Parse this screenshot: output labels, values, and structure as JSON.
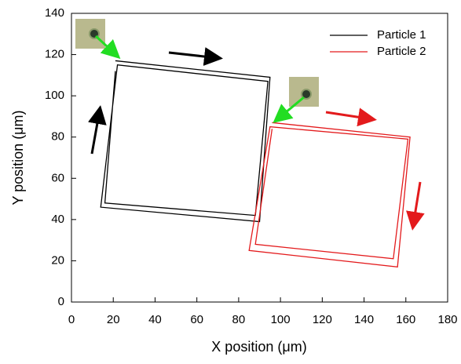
{
  "chart_data": {
    "type": "line",
    "xlabel": "X position (μm)",
    "ylabel": "Y position (μm)",
    "xlim": [
      0,
      180
    ],
    "xticks": [
      0,
      20,
      40,
      60,
      80,
      100,
      120,
      140,
      160,
      180
    ],
    "ylim": [
      0,
      140
    ],
    "yticks": [
      0,
      20,
      40,
      60,
      80,
      100,
      120,
      140
    ],
    "legend": "upper right",
    "series": [
      {
        "name": "Particle 1",
        "color": "#000000",
        "x": [
          21,
          95,
          90,
          14,
          22,
          94,
          88,
          16,
          21
        ],
        "values": [
          117,
          109,
          39,
          46,
          115,
          107,
          42,
          48,
          112
        ]
      },
      {
        "name": "Particle 2",
        "color": "#e31a1c",
        "x": [
          96,
          162,
          156,
          85,
          95,
          161,
          154,
          88,
          96
        ],
        "values": [
          87,
          80,
          17,
          25,
          85,
          79,
          21,
          28,
          84
        ]
      }
    ]
  }
}
